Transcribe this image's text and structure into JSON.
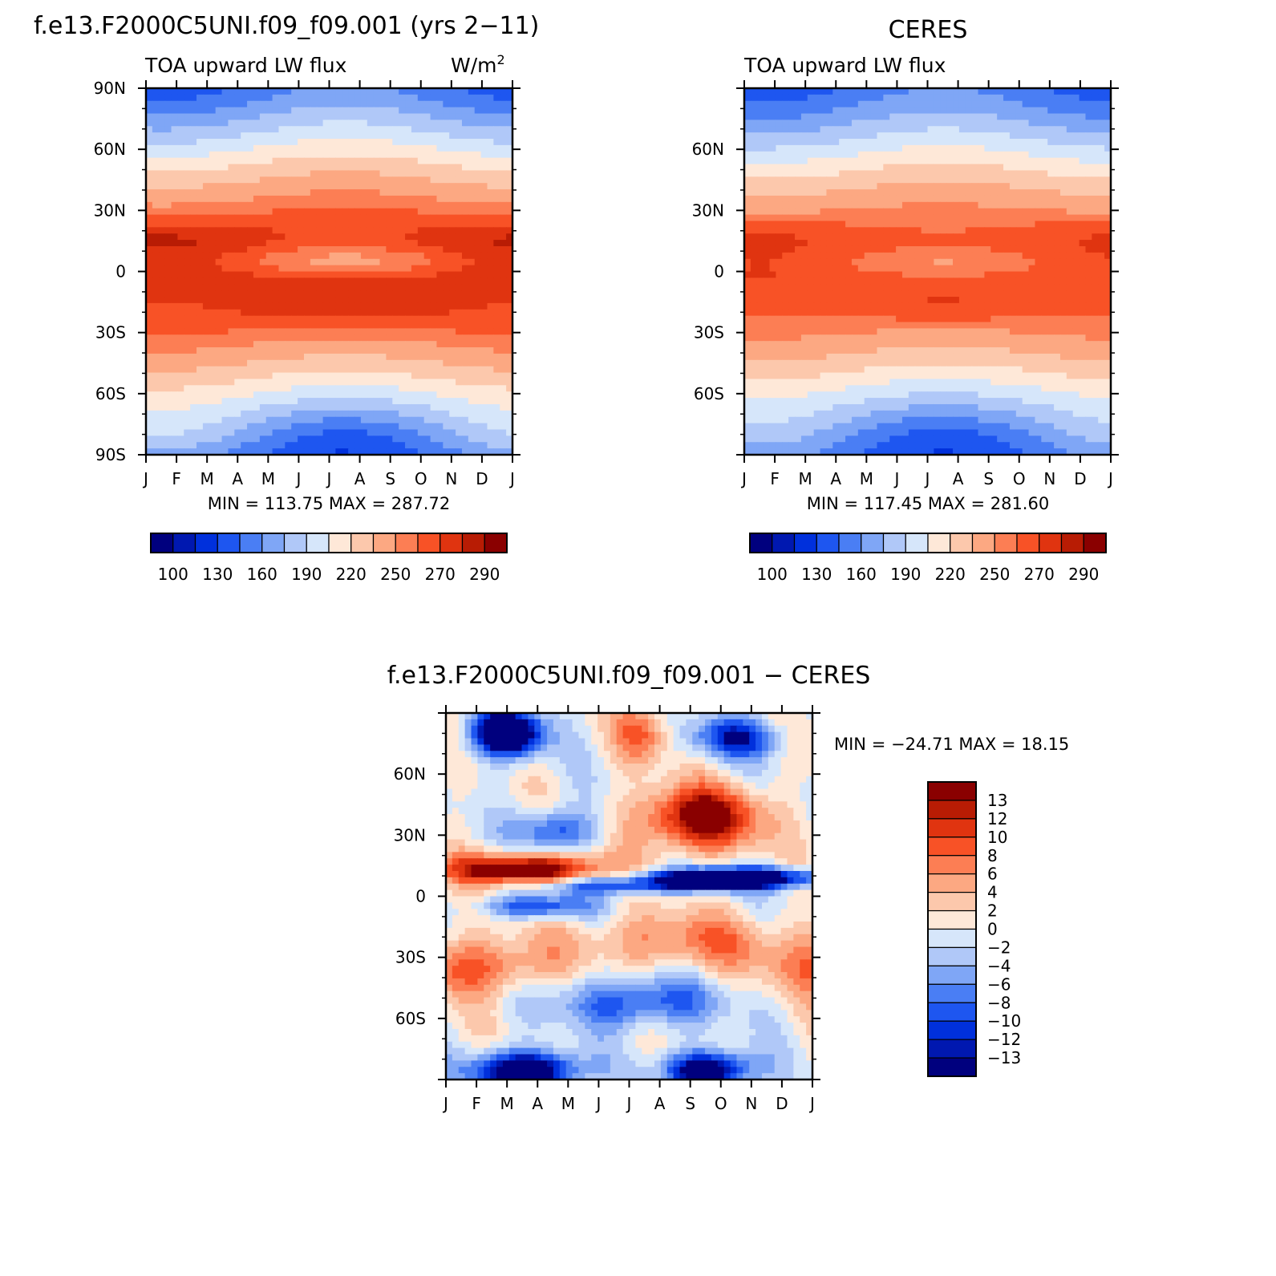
{
  "page": {
    "main_title": "f.e13.F2000C5UNI.f09_f09.001 (yrs 2−11)",
    "right_title": "CERES",
    "diff_title": "f.e13.F2000C5UNI.f09_f09.001 − CERES"
  },
  "chart_data": [
    {
      "id": "model",
      "type": "heatmap",
      "title": "f.e13.F2000C5UNI.f09_f09.001 (yrs 2−11)",
      "left_label": "TOA upward LW flux",
      "right_label": "W/m",
      "right_label_sup": "2",
      "x_tick_labels": [
        "J",
        "F",
        "M",
        "A",
        "M",
        "J",
        "J",
        "A",
        "S",
        "O",
        "N",
        "D",
        "J"
      ],
      "y_tick_labels": [
        "90N",
        "60N",
        "30N",
        "0",
        "30S",
        "60S",
        "90S"
      ],
      "y_tick_values": [
        90,
        60,
        30,
        0,
        -30,
        -60,
        -90
      ],
      "ylim": [
        -90,
        90
      ],
      "min_label": "MIN = 113.75 MAX = 287.72",
      "min": 113.75,
      "max": 287.72,
      "colorbar_labels": [
        "100",
        "130",
        "160",
        "190",
        "220",
        "250",
        "270",
        "290"
      ],
      "colorbar_colors": [
        "#00007e",
        "#0018b0",
        "#0030dc",
        "#1e56f0",
        "#4a7ef4",
        "#7fa6f6",
        "#b0c8f8",
        "#d6e6fa",
        "#fee8d8",
        "#fcc8ac",
        "#fca882",
        "#fc7e54",
        "#f85226",
        "#e03410",
        "#b81c04",
        "#8a0000"
      ],
      "colorbar_levels": [
        90,
        100,
        115,
        130,
        145,
        160,
        175,
        190,
        205,
        220,
        235,
        250,
        260,
        270,
        280,
        290,
        300
      ]
    },
    {
      "id": "obs",
      "type": "heatmap",
      "title": "CERES",
      "left_label": "TOA upward LW flux",
      "x_tick_labels": [
        "J",
        "F",
        "M",
        "A",
        "M",
        "J",
        "J",
        "A",
        "S",
        "O",
        "N",
        "D",
        "J"
      ],
      "y_tick_labels": [
        "60N",
        "30N",
        "0",
        "30S",
        "60S"
      ],
      "y_tick_values": [
        60,
        30,
        0,
        -30,
        -60
      ],
      "ylim": [
        -90,
        90
      ],
      "min_label": "MIN = 117.45 MAX = 281.60",
      "min": 117.45,
      "max": 281.6,
      "colorbar_labels": [
        "100",
        "130",
        "160",
        "190",
        "220",
        "250",
        "270",
        "290"
      ]
    },
    {
      "id": "diff",
      "type": "heatmap",
      "title": "f.e13.F2000C5UNI.f09_f09.001 − CERES",
      "x_tick_labels": [
        "J",
        "F",
        "M",
        "A",
        "M",
        "J",
        "J",
        "A",
        "S",
        "O",
        "N",
        "D",
        "J"
      ],
      "y_tick_labels": [
        "60N",
        "30N",
        "0",
        "30S",
        "60S"
      ],
      "y_tick_values": [
        60,
        30,
        0,
        -30,
        -60
      ],
      "ylim": [
        -90,
        90
      ],
      "min_label": "MIN = −24.71 MAX =   18.15",
      "min": -24.71,
      "max": 18.15,
      "colorbar_labels": [
        "13",
        "12",
        "10",
        "8",
        "6",
        "4",
        "2",
        "0",
        "−2",
        "−4",
        "−6",
        "−8",
        "−10",
        "−12",
        "−13"
      ],
      "colorbar_colors": [
        "#8a0000",
        "#b81c04",
        "#e03410",
        "#f85226",
        "#fc7e54",
        "#fca882",
        "#fcc8ac",
        "#fee8d8",
        "#d6e6fa",
        "#b0c8f8",
        "#7fa6f6",
        "#4a7ef4",
        "#1e56f0",
        "#0030dc",
        "#0018b0",
        "#00007e"
      ],
      "colorbar_levels": [
        -30,
        -13,
        -12,
        -10,
        -8,
        -6,
        -4,
        -2,
        0,
        2,
        4,
        6,
        8,
        10,
        12,
        13,
        30
      ]
    }
  ]
}
